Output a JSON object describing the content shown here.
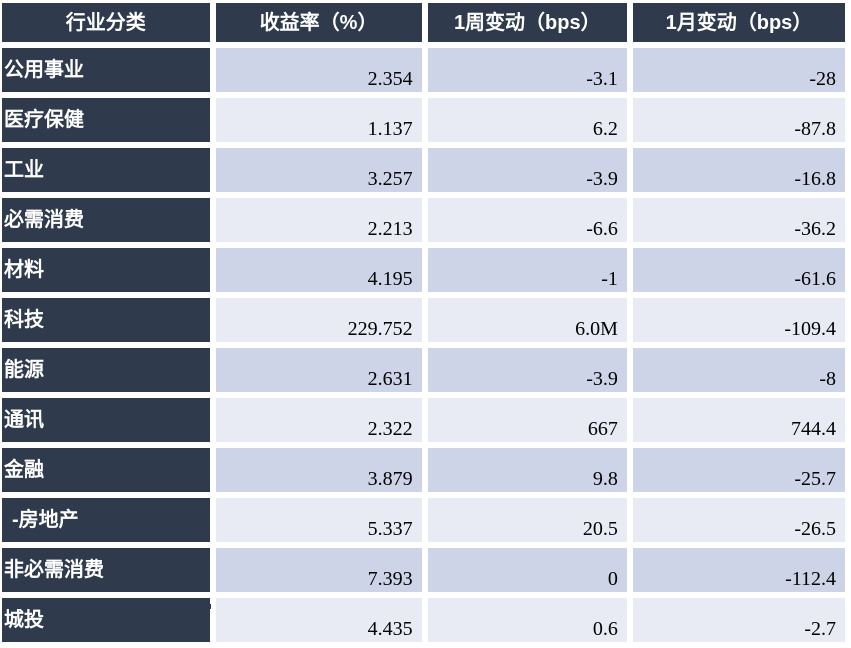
{
  "chart_data": {
    "type": "table",
    "columns": [
      "行业分类",
      "收益率（%）",
      "1周变动（bps）",
      "1月变动（bps）"
    ],
    "rows": [
      [
        "公用事业",
        "2.354",
        "-3.1",
        "-28"
      ],
      [
        "医疗保健",
        "1.137",
        "6.2",
        "-87.8"
      ],
      [
        "工业",
        "3.257",
        "-3.9",
        "-16.8"
      ],
      [
        "必需消费",
        "2.213",
        "-6.6",
        "-36.2"
      ],
      [
        "材料",
        "4.195",
        "-1",
        "-61.6"
      ],
      [
        "科技",
        "229.752",
        "6.0M",
        "-109.4"
      ],
      [
        "能源",
        "2.631",
        "-3.9",
        "-8"
      ],
      [
        "通讯",
        "2.322",
        "667",
        "744.4"
      ],
      [
        "金融",
        "3.879",
        "9.8",
        "-25.7"
      ],
      [
        "-房地产",
        "5.337",
        "20.5",
        "-26.5"
      ],
      [
        "非必需消费",
        "7.393",
        "0",
        "-112.4"
      ],
      [
        "城投",
        "4.435",
        "0.6",
        "-2.7"
      ]
    ]
  },
  "colors": {
    "header_bg": "#2f3a4d",
    "header_text": "#ffffff",
    "row_dark": "#cdd4e7",
    "row_light": "#e9ebf4",
    "number_text": "#000000"
  }
}
